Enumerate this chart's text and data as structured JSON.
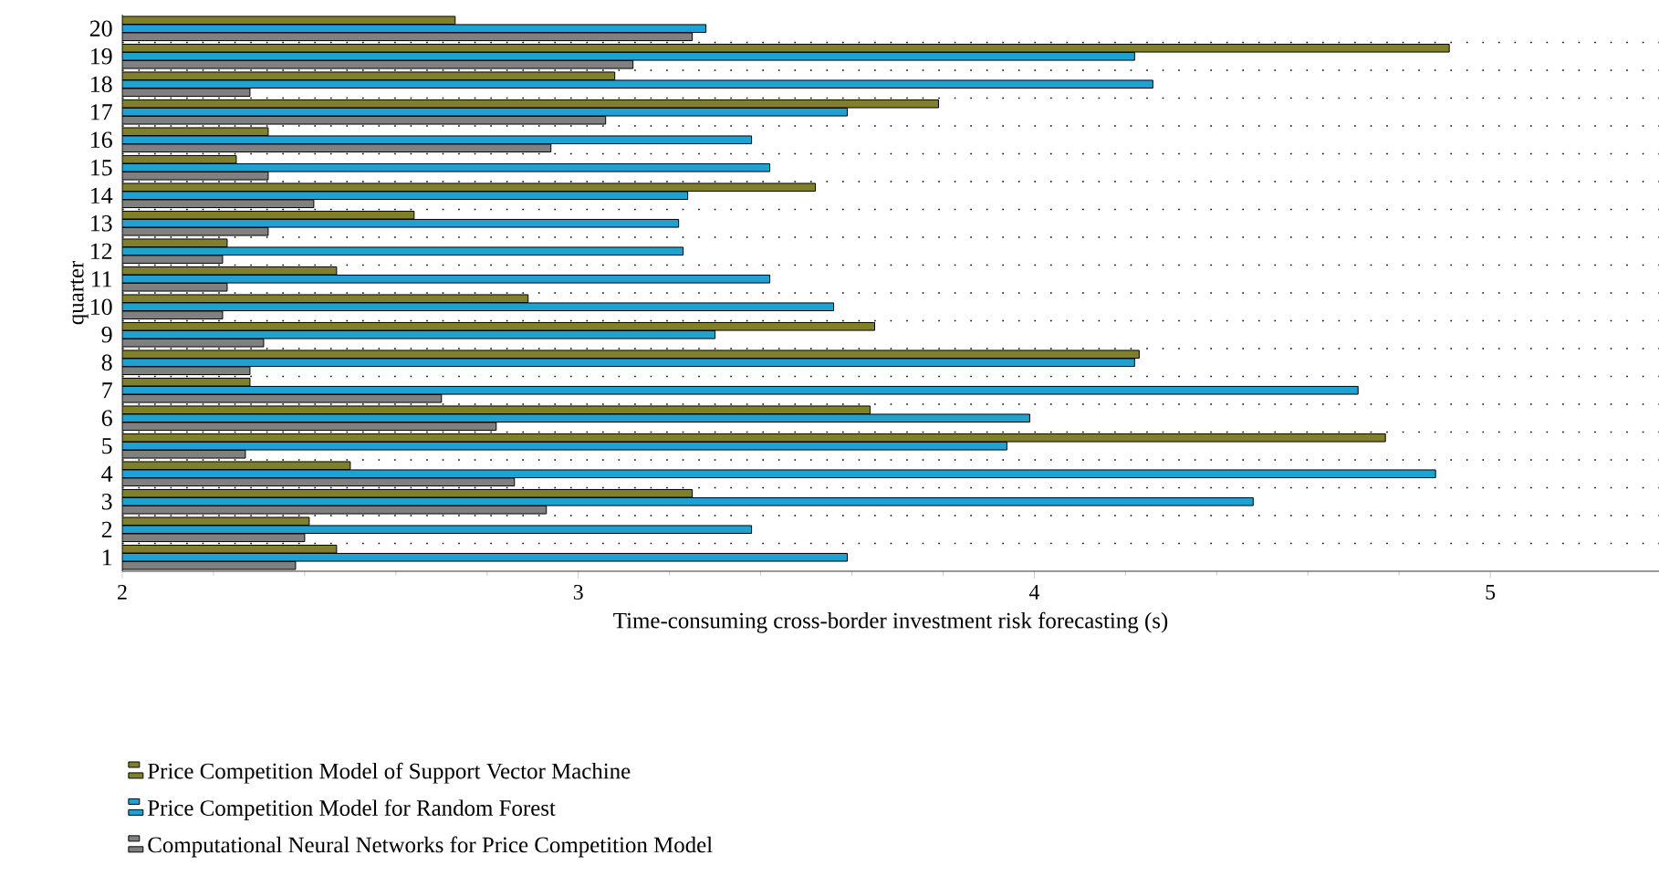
{
  "chart_data": {
    "type": "bar",
    "orientation": "horizontal",
    "xlabel": "Time-consuming cross-border investment risk forecasting (s)",
    "ylabel": "quarter",
    "categories": [
      "20",
      "19",
      "18",
      "17",
      "16",
      "15",
      "14",
      "13",
      "12",
      "11",
      "10",
      "9",
      "8",
      "7",
      "6",
      "5",
      "4",
      "3",
      "2",
      "1"
    ],
    "series": [
      {
        "name": "Price Competition Model of Support Vector Machine",
        "color": "#7f7f2c",
        "values": [
          2.73,
          4.91,
          3.08,
          3.79,
          2.32,
          2.25,
          3.52,
          2.64,
          2.23,
          2.47,
          2.89,
          3.65,
          4.23,
          2.28,
          3.64,
          4.77,
          2.5,
          3.25,
          2.41,
          2.47
        ]
      },
      {
        "name": "Price Competition Model for Random Forest",
        "color": "#1fa2d2",
        "values": [
          3.28,
          4.22,
          4.26,
          3.59,
          3.38,
          3.42,
          3.24,
          3.22,
          3.23,
          3.42,
          3.56,
          3.3,
          4.22,
          4.71,
          3.99,
          3.94,
          4.88,
          4.48,
          3.38,
          3.59
        ]
      },
      {
        "name": "Computational Neural Networks for Price Competition Model",
        "color": "#808080",
        "values": [
          3.25,
          3.12,
          2.28,
          3.06,
          2.94,
          2.32,
          2.42,
          2.32,
          2.22,
          2.23,
          2.22,
          2.31,
          2.28,
          2.7,
          2.82,
          2.27,
          2.86,
          2.93,
          2.4,
          2.38
        ]
      }
    ],
    "xlim": [
      2,
      5.37
    ],
    "xticks": [
      2,
      3,
      4,
      5
    ],
    "grid": "y",
    "legend": "bottom"
  }
}
